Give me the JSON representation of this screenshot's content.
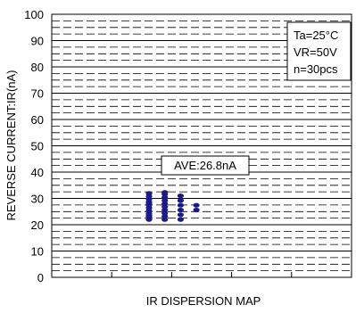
{
  "chart_data": {
    "type": "scatter",
    "title": "",
    "xlabel": "IR DISPERSION MAP",
    "ylabel": "REVERSE CURRENT:IR(nA)",
    "ylim": [
      0,
      100
    ],
    "yticks": [
      "0",
      "10",
      "20",
      "30",
      "40",
      "50",
      "60",
      "70",
      "80",
      "90",
      "100"
    ],
    "x_categories": 5,
    "grid": "dashed",
    "marker_color": "#1a1a8c",
    "conditions": [
      "Ta=25°C",
      "VR=50V",
      "n=30pcs"
    ],
    "annotation": "AVE:26.8nA",
    "series": [
      {
        "x": [
          1,
          1,
          1,
          1,
          1,
          1,
          1,
          1,
          1,
          1,
          1,
          1,
          2,
          2,
          2,
          2,
          2,
          2,
          2,
          2,
          2,
          2,
          3,
          3,
          3,
          3,
          3,
          3,
          4,
          4
        ],
        "y": [
          22.0,
          23.1,
          24.2,
          25.3,
          26.4,
          27.5,
          28.6,
          29.7,
          30.8,
          31.9,
          23.5,
          28.0,
          22.0,
          23.2,
          24.4,
          25.6,
          26.8,
          28.0,
          29.2,
          30.4,
          31.6,
          32.3,
          22.0,
          23.8,
          25.6,
          27.4,
          29.2,
          31.0,
          25.6,
          27.4
        ]
      }
    ]
  }
}
